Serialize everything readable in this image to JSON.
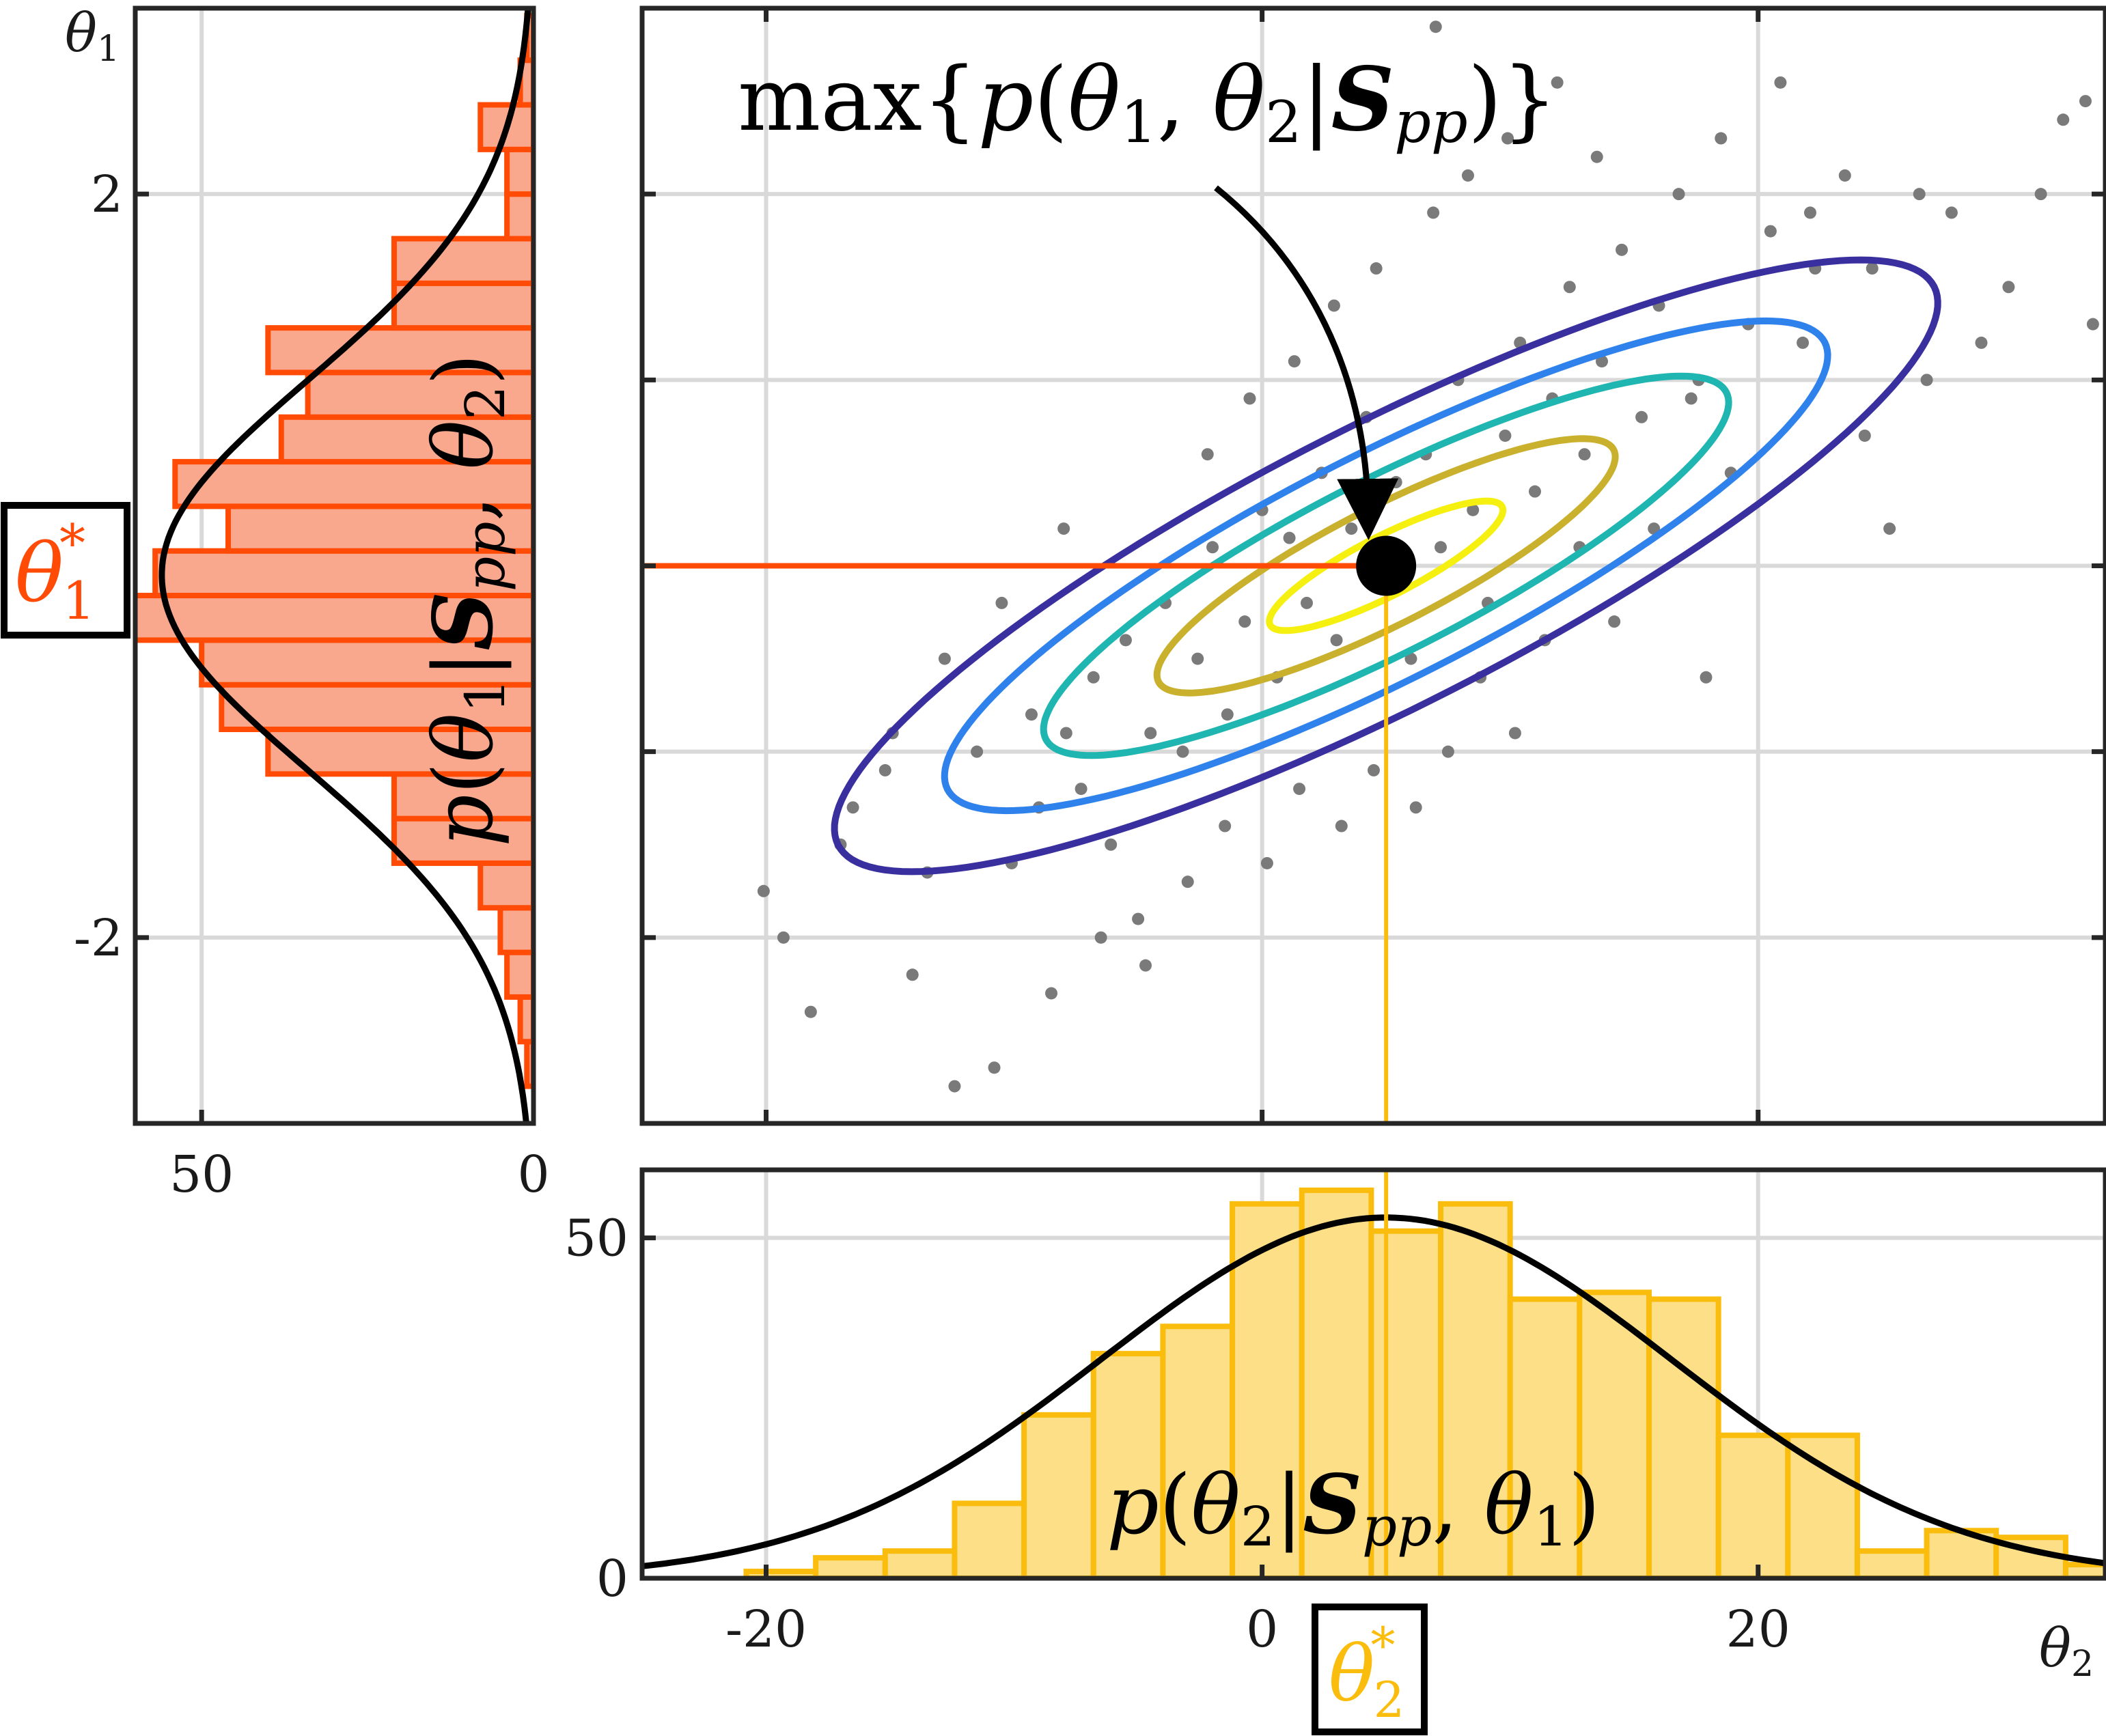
{
  "chart_data": [
    {
      "id": "joint",
      "type": "scatter",
      "title": "",
      "xlabel": "",
      "ylabel": "",
      "xlim": [
        -25,
        34
      ],
      "ylim": [
        -3,
        3
      ],
      "xticks": [
        -20,
        0,
        20
      ],
      "yticks": [
        -2,
        -1,
        0,
        1,
        2
      ],
      "grid": true,
      "mode": [
        5,
        0
      ],
      "mode_label": "max{p(θ1, θ2 | Spp)}",
      "contour_center": [
        5,
        0
      ],
      "contour_angle_deg": 27,
      "contour_levels": [
        {
          "semi_axes": [
            10.5,
            0.32
          ],
          "color": "#f5f00f"
        },
        {
          "semi_axes": [
            20.6,
            0.63
          ],
          "color": "#c9b12e"
        },
        {
          "semi_axes": [
            30.8,
            0.93
          ],
          "color": "#1fb5b0"
        },
        {
          "semi_axes": [
            39.7,
            1.21
          ],
          "color": "#2f82ec"
        },
        {
          "semi_axes": [
            49.6,
            1.51
          ],
          "color": "#3a2f9e"
        }
      ],
      "points": [
        [
          -20.1,
          -1.75
        ],
        [
          -18.2,
          -2.4
        ],
        [
          -19.3,
          -2.0
        ],
        [
          -17.0,
          -1.5
        ],
        [
          -16.5,
          -1.3
        ],
        [
          -15.2,
          -1.1
        ],
        [
          -14.1,
          -2.2
        ],
        [
          -13.5,
          -1.65
        ],
        [
          -12.4,
          -2.8
        ],
        [
          -11.5,
          -1.0
        ],
        [
          -10.8,
          -2.7
        ],
        [
          -10.1,
          -1.6
        ],
        [
          -9.3,
          -0.8
        ],
        [
          -9.0,
          -1.3
        ],
        [
          -8.5,
          -2.3
        ],
        [
          -7.9,
          -0.9
        ],
        [
          -7.3,
          -1.2
        ],
        [
          -6.8,
          -0.6
        ],
        [
          -6.1,
          -1.5
        ],
        [
          -5.5,
          -0.4
        ],
        [
          -4.7,
          -2.15
        ],
        [
          -4.5,
          -0.9
        ],
        [
          -3.9,
          -0.2
        ],
        [
          -3.2,
          -1.0
        ],
        [
          -2.6,
          -0.5
        ],
        [
          -2.0,
          0.1
        ],
        [
          -1.4,
          -0.8
        ],
        [
          -0.7,
          -0.3
        ],
        [
          0.0,
          0.3
        ],
        [
          0.6,
          -0.6
        ],
        [
          1.1,
          0.15
        ],
        [
          1.8,
          -0.2
        ],
        [
          2.4,
          0.5
        ],
        [
          3.0,
          -0.4
        ],
        [
          3.6,
          0.2
        ],
        [
          4.2,
          0.8
        ],
        [
          4.8,
          -0.1
        ],
        [
          5.4,
          0.45
        ],
        [
          6.0,
          -0.5
        ],
        [
          6.6,
          0.6
        ],
        [
          7.2,
          0.1
        ],
        [
          7.9,
          1.0
        ],
        [
          8.5,
          0.3
        ],
        [
          9.1,
          -0.2
        ],
        [
          9.8,
          0.7
        ],
        [
          10.4,
          1.2
        ],
        [
          11.0,
          0.4
        ],
        [
          11.7,
          0.9
        ],
        [
          12.4,
          1.5
        ],
        [
          13.0,
          0.6
        ],
        [
          13.7,
          1.1
        ],
        [
          14.5,
          1.7
        ],
        [
          15.3,
          0.8
        ],
        [
          16.0,
          1.4
        ],
        [
          16.8,
          2.0
        ],
        [
          17.6,
          1.0
        ],
        [
          18.5,
          2.3
        ],
        [
          19.6,
          1.3
        ],
        [
          20.9,
          2.6
        ],
        [
          22.3,
          1.6
        ],
        [
          23.5,
          2.1
        ],
        [
          24.3,
          0.7
        ],
        [
          25.3,
          0.2
        ],
        [
          26.5,
          2.0
        ],
        [
          27.8,
          1.9
        ],
        [
          29.0,
          1.2
        ],
        [
          30.1,
          1.5
        ],
        [
          31.4,
          2.0
        ],
        [
          32.3,
          2.4
        ],
        [
          33.2,
          2.5
        ],
        [
          33.5,
          1.3
        ],
        [
          26.8,
          1.0
        ],
        [
          21.8,
          1.2
        ],
        [
          20.5,
          1.8
        ],
        [
          18.9,
          0.5
        ],
        [
          17.3,
          0.9
        ],
        [
          15.8,
          0.2
        ],
        [
          14.2,
          -0.3
        ],
        [
          12.8,
          0.1
        ],
        [
          11.4,
          -0.4
        ],
        [
          10.2,
          -0.9
        ],
        [
          8.8,
          -0.6
        ],
        [
          7.5,
          -1.0
        ],
        [
          6.2,
          -1.3
        ],
        [
          4.5,
          -1.1
        ],
        [
          3.2,
          -1.4
        ],
        [
          1.5,
          -1.2
        ],
        [
          0.2,
          -1.6
        ],
        [
          -1.5,
          -1.4
        ],
        [
          -3.0,
          -1.7
        ],
        [
          -5.0,
          -1.9
        ],
        [
          -6.5,
          -2.0
        ],
        [
          -2.2,
          0.6
        ],
        [
          -0.5,
          0.9
        ],
        [
          1.3,
          1.1
        ],
        [
          2.9,
          1.4
        ],
        [
          4.6,
          1.6
        ],
        [
          6.9,
          1.9
        ],
        [
          8.3,
          2.1
        ],
        [
          9.9,
          2.3
        ],
        [
          11.9,
          2.6
        ],
        [
          13.5,
          2.2
        ],
        [
          -8.0,
          0.2
        ],
        [
          -10.5,
          -0.2
        ],
        [
          -12.8,
          -0.5
        ],
        [
          -14.9,
          -0.9
        ],
        [
          7.0,
          2.9
        ],
        [
          17.9,
          -0.6
        ],
        [
          24.6,
          1.6
        ],
        [
          22.1,
          1.9
        ]
      ]
    },
    {
      "id": "marginal-theta1",
      "type": "bar",
      "orientation": "horizontal",
      "title": "",
      "series_label": "p(θ1 | Spp, θ2)",
      "xlabel": "",
      "ylabel": "θ1",
      "xlim": [
        0,
        60
      ],
      "ylim": [
        -3,
        3
      ],
      "xticks": [
        50,
        0
      ],
      "yticks": [
        -2,
        2
      ],
      "grid": true,
      "bin_edges": [
        -2.8,
        -2.56,
        -2.32,
        -2.08,
        -1.84,
        -1.6,
        -1.36,
        -1.12,
        -0.88,
        -0.64,
        -0.4,
        -0.16,
        0.08,
        0.32,
        0.56,
        0.8,
        1.04,
        1.28,
        1.52,
        1.76,
        2.0,
        2.24,
        2.48,
        2.72,
        2.96
      ],
      "counts": [
        1,
        2,
        4,
        5,
        8,
        21,
        21,
        40,
        47,
        50,
        61,
        57,
        46,
        54,
        38,
        34,
        40,
        21,
        21,
        4,
        4,
        8,
        2,
        1
      ],
      "fit_mean": -0.05,
      "fit_std": 1.05,
      "fit_peak": 56,
      "mode_label": "θ1*",
      "mode_value": 0,
      "bar_fill": "#f9a88d",
      "bar_edge": "#ff4b06"
    },
    {
      "id": "marginal-theta2",
      "type": "bar",
      "title": "",
      "series_label": "p(θ2 | Spp, θ1)",
      "xlabel": "θ2",
      "ylabel": "",
      "xlim": [
        -25,
        34
      ],
      "ylim": [
        0,
        60
      ],
      "xticks": [
        -20,
        0,
        20
      ],
      "yticks": [
        0,
        50
      ],
      "grid": true,
      "bin_edges": [
        -20.8,
        -18,
        -15.2,
        -12.4,
        -9.6,
        -6.8,
        -4,
        -1.2,
        1.6,
        4.4,
        7.2,
        10,
        12.8,
        15.6,
        18.4,
        21.2,
        24,
        26.8,
        29.6,
        32.4,
        35.2
      ],
      "counts": [
        1,
        3,
        4,
        11,
        24,
        33,
        37,
        55,
        57,
        51,
        55,
        41,
        42,
        41,
        21,
        21,
        4,
        7,
        6,
        2
      ],
      "fit_mean": 5,
      "fit_std": 11.5,
      "fit_peak": 53,
      "mode_label": "θ2*",
      "mode_value": 5,
      "bar_fill": "#fddf88",
      "bar_edge": "#fbbd0d"
    }
  ]
}
